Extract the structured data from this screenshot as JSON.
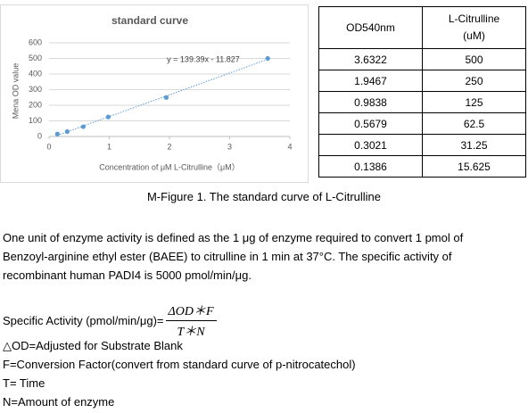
{
  "chart_data": {
    "type": "scatter",
    "title": "standard curve",
    "xlabel": "Concentration of μM L-Citrulline（μM）",
    "ylabel": "Mena OD value",
    "x": [
      0.1386,
      0.3021,
      0.5679,
      0.9838,
      1.9467,
      3.6322
    ],
    "series": [
      {
        "color": "#5b9bd5",
        "values": [
          15.625,
          31.25,
          62.5,
          125,
          250,
          500
        ]
      }
    ],
    "xlim": [
      0,
      4
    ],
    "ylim": [
      0,
      600
    ],
    "xticks": [
      0,
      1,
      2,
      3,
      4
    ],
    "yticks": [
      0,
      100,
      200,
      300,
      400,
      500,
      600
    ],
    "grid": true,
    "trendline": {
      "label": "y = 139.39x - 11.827",
      "slope": 139.39,
      "intercept": -11.827
    }
  },
  "table": {
    "columns": [
      {
        "lines": [
          "OD540nm"
        ]
      },
      {
        "lines": [
          "L-Citrulline",
          "(uM)"
        ]
      }
    ],
    "rows": [
      [
        "3.6322",
        "500"
      ],
      [
        "1.9467",
        "250"
      ],
      [
        "0.9838",
        "125"
      ],
      [
        "0.5679",
        "62.5"
      ],
      [
        "0.3021",
        "31.25"
      ],
      [
        "0.1386",
        "15.625"
      ]
    ]
  },
  "caption": "M-Figure 1. The standard curve of L-Citrulline",
  "paragraph": "One unit of enzyme activity is defined as the 1 μg of enzyme required to convert 1 pmol of Benzoyl-arginine ethyl ester (BAEE) to citrulline in 1 min at 37°C. The specific activity of recombinant human PADI4 is 5000 pmol/min/μg.",
  "formula": {
    "label": "Specific Activity (pmol/min/μg)=",
    "numerator": "ΔOD＊F",
    "denominator": "T＊N"
  },
  "definitions": [
    "△OD=Adjusted for Substrate Blank",
    "F=Conversion Factor(convert from standard curve of p-nitrocatechol)",
    "T= Time",
    "N=Amount of enzyme"
  ]
}
